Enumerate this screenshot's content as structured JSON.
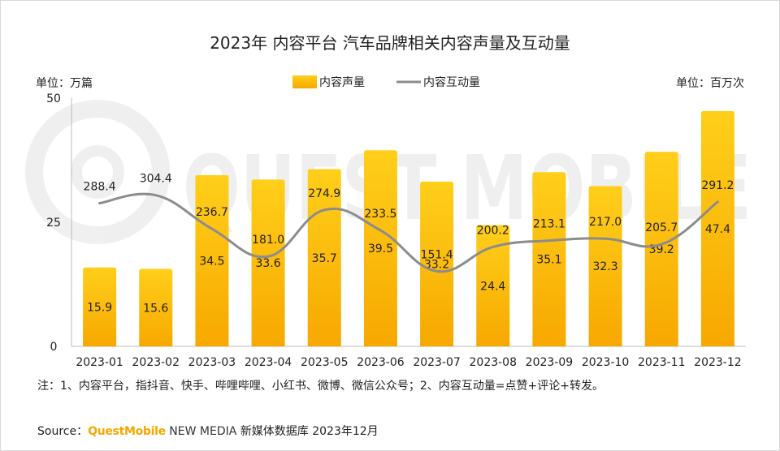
{
  "chart_data": {
    "type": "bar",
    "title": "2023年 内容平台 汽车品牌相关内容声量及互动量",
    "categories": [
      "2023-01",
      "2023-02",
      "2023-03",
      "2023-04",
      "2023-05",
      "2023-06",
      "2023-07",
      "2023-08",
      "2023-09",
      "2023-10",
      "2023-11",
      "2023-12"
    ],
    "series": [
      {
        "name": "内容声量",
        "type": "bar",
        "axis": "left",
        "color": "#f5b800",
        "values": [
          15.9,
          15.6,
          34.5,
          33.6,
          35.7,
          39.5,
          33.2,
          24.4,
          35.1,
          32.3,
          39.2,
          47.4
        ]
      },
      {
        "name": "内容互动量",
        "type": "line",
        "axis": "right",
        "color": "#8c8c8c",
        "values": [
          288.4,
          304.4,
          236.7,
          181.0,
          274.9,
          233.5,
          151.4,
          200.2,
          213.1,
          217.0,
          205.7,
          291.2
        ]
      }
    ],
    "left_axis": {
      "unit_label": "单位：万篇",
      "ylim": [
        0,
        50
      ],
      "ticks": [
        "0",
        "25",
        "50"
      ]
    },
    "right_axis": {
      "unit_label": "单位：百万次",
      "ylim": [
        0,
        500
      ]
    },
    "legend_position": "top-center"
  },
  "watermark": "QUEST MOBILE",
  "note": "注：1、内容平台，指抖音、快手、哔哩哔哩、小红书、微博、微信公众号；2、内容互动量=点赞+评论+转发。",
  "source": {
    "prefix": "Source：",
    "brand": "QuestMobile",
    "brand_suffix": " NEW MEDIA",
    "rest": " 新媒体数据库 2023年12月"
  },
  "colors": {
    "bar_top": "#ffcf1a",
    "bar_bottom": "#f7a800",
    "line": "#8c8c8c"
  }
}
